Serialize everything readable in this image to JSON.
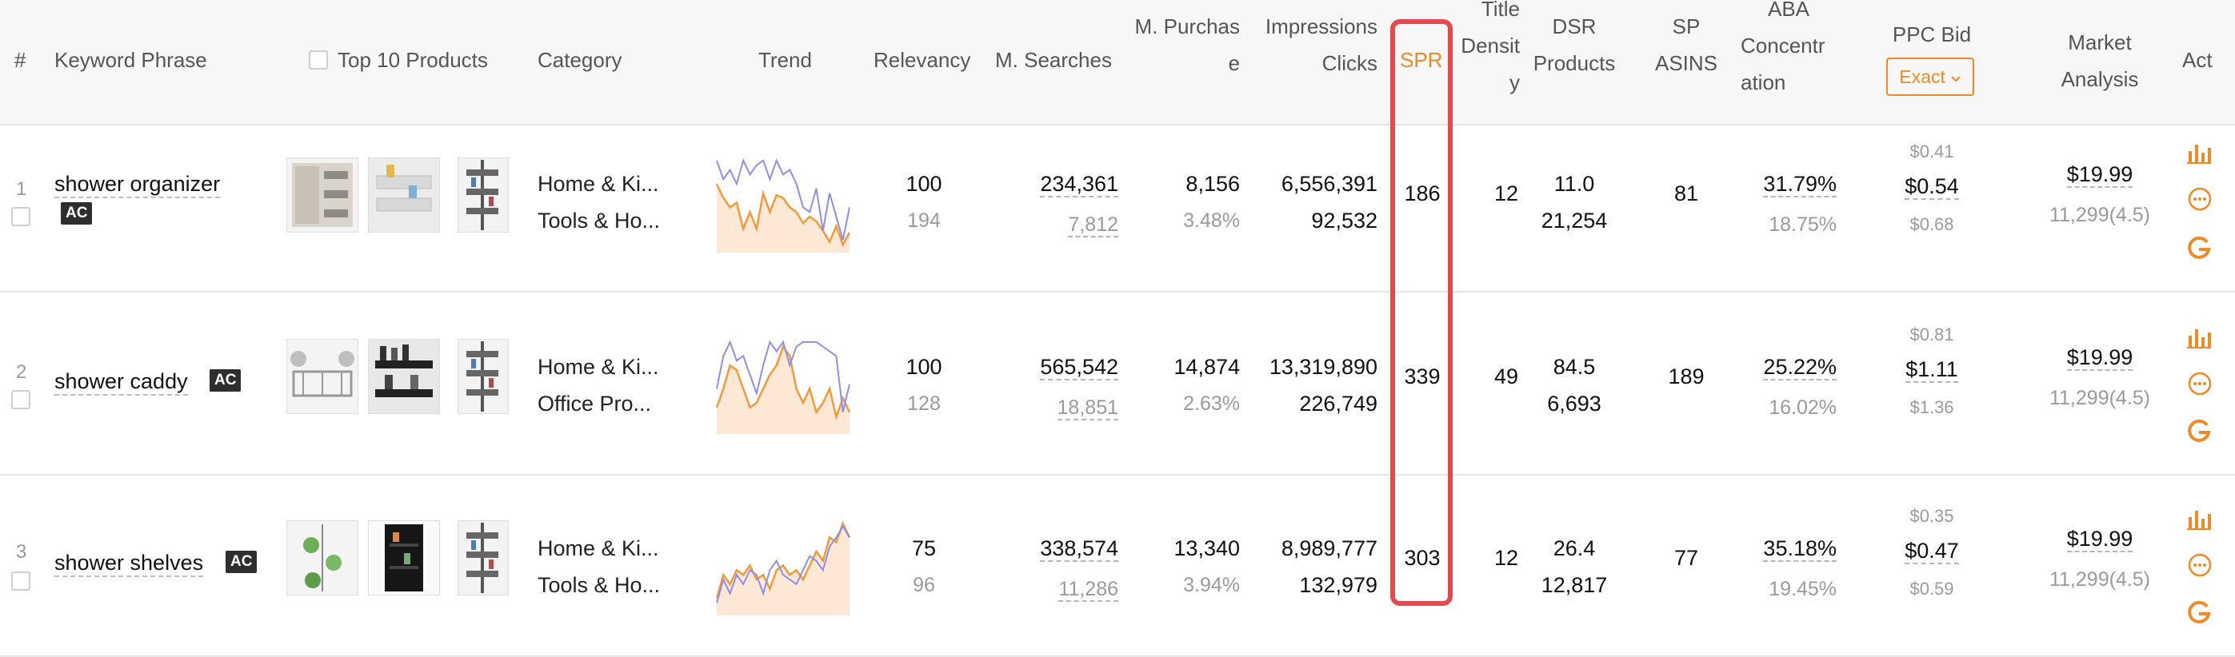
{
  "header": {
    "num": "#",
    "keyword": "Keyword Phrase",
    "top10": "Top 10 Products",
    "category": "Category",
    "trend": "Trend",
    "relevancy": "Relevancy",
    "msearches": "M. Searches",
    "mpurchase_l1": "M. Purchas",
    "mpurchase_l2": "e",
    "impressions": "Impressions",
    "clicks": "Clicks",
    "spr": "SPR",
    "title_l1": "Title",
    "title_l2": "Densit",
    "title_l3": "y",
    "dsr_l1": "DSR",
    "dsr_l2": "Products",
    "sp_l1": "SP",
    "sp_l2": "ASINS",
    "aba_l1": "ABA",
    "aba_l2": "Concentr",
    "aba_l3": "ation",
    "ppc": "PPC Bid",
    "ppc_select": "Exact",
    "market_l1": "Market",
    "market_l2": "Analysis",
    "act": "Act"
  },
  "colors": {
    "accent": "#f08a24",
    "highlight_border": "#e5484d",
    "trend_fill": "#fde8d6",
    "trend_orange": "#f39a3c",
    "trend_purple": "#8e8ee8"
  },
  "rows": [
    {
      "index": "1",
      "keyword": "shower organizer",
      "badge": "AC",
      "category1": "Home & Ki...",
      "category2": "Tools & Ho...",
      "relevancy": "100",
      "relevancy_sub": "194",
      "searches": "234,361",
      "searches_sub": "7,812",
      "purchase": "8,156",
      "purchase_pct": "3.48%",
      "impressions": "6,556,391",
      "clicks": "92,532",
      "spr": "186",
      "title_density": "12",
      "dsr": "11.0",
      "products": "21,254",
      "sp_asins": "81",
      "aba_top": "31.79%",
      "aba_sub": "18.75%",
      "ppc_low": "$0.41",
      "ppc_mid": "$0.54",
      "ppc_high": "$0.68",
      "market_price": "$19.99",
      "market_sub": "11,299(4.5)",
      "trend_orange": [
        0.3,
        0.45,
        0.55,
        0.5,
        0.78,
        0.6,
        0.78,
        0.4,
        0.6,
        0.42,
        0.45,
        0.55,
        0.6,
        0.72,
        0.65,
        0.7,
        0.8,
        0.92,
        0.75,
        0.95,
        0.82
      ],
      "trend_purple": [
        0.05,
        0.25,
        0.15,
        0.3,
        0.05,
        0.2,
        0.1,
        0.05,
        0.25,
        0.05,
        0.2,
        0.15,
        0.3,
        0.55,
        0.6,
        0.35,
        0.8,
        0.4,
        0.65,
        0.9,
        0.55
      ]
    },
    {
      "index": "2",
      "keyword": "shower caddy",
      "badge": "AC",
      "category1": "Home & Ki...",
      "category2": "Office Pro...",
      "relevancy": "100",
      "relevancy_sub": "128",
      "searches": "565,542",
      "searches_sub": "18,851",
      "purchase": "14,874",
      "purchase_pct": "2.63%",
      "impressions": "13,319,890",
      "clicks": "226,749",
      "spr": "339",
      "title_density": "49",
      "dsr": "84.5",
      "products": "6,693",
      "sp_asins": "189",
      "aba_top": "25.22%",
      "aba_sub": "16.02%",
      "ppc_low": "$0.81",
      "ppc_mid": "$1.11",
      "ppc_high": "$1.36",
      "market_price": "$19.99",
      "market_sub": "11,299(4.5)",
      "trend_orange": [
        0.75,
        0.55,
        0.3,
        0.35,
        0.55,
        0.75,
        0.7,
        0.55,
        0.4,
        0.3,
        0.1,
        0.2,
        0.55,
        0.7,
        0.55,
        0.8,
        0.7,
        0.55,
        0.85,
        0.65,
        0.8
      ],
      "trend_purple": [
        0.55,
        0.2,
        0.05,
        0.25,
        0.2,
        0.4,
        0.6,
        0.3,
        0.05,
        0.15,
        0.05,
        0.3,
        0.1,
        0.05,
        0.05,
        0.05,
        0.1,
        0.15,
        0.2,
        0.8,
        0.5
      ]
    },
    {
      "index": "3",
      "keyword": "shower shelves",
      "badge": "AC",
      "category1": "Home & Ki...",
      "category2": "Tools & Ho...",
      "relevancy": "75",
      "relevancy_sub": "96",
      "searches": "338,574",
      "searches_sub": "11,286",
      "purchase": "13,340",
      "purchase_pct": "3.94%",
      "impressions": "8,989,777",
      "clicks": "132,979",
      "spr": "303",
      "title_density": "12",
      "dsr": "26.4",
      "products": "12,817",
      "sp_asins": "77",
      "aba_top": "35.18%",
      "aba_sub": "19.45%",
      "ppc_low": "$0.35",
      "ppc_mid": "$0.47",
      "ppc_high": "$0.59",
      "market_price": "$19.99",
      "market_sub": "11,299(4.5)",
      "trend_orange": [
        0.85,
        0.6,
        0.7,
        0.55,
        0.6,
        0.5,
        0.65,
        0.6,
        0.75,
        0.55,
        0.5,
        0.6,
        0.55,
        0.65,
        0.5,
        0.35,
        0.45,
        0.2,
        0.25,
        0.05,
        0.2
      ],
      "trend_purple": [
        0.9,
        0.65,
        0.8,
        0.6,
        0.7,
        0.55,
        0.6,
        0.8,
        0.55,
        0.45,
        0.6,
        0.65,
        0.7,
        0.55,
        0.4,
        0.45,
        0.55,
        0.3,
        0.2,
        0.08,
        0.2
      ]
    }
  ]
}
